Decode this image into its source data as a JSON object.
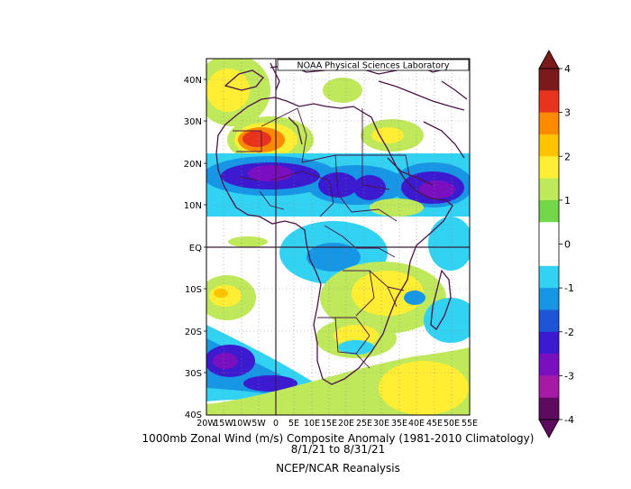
{
  "credit": "NOAA Physical Sciences Laboratory",
  "caption": {
    "line1": "1000mb Zonal Wind (m/s) Composite Anomaly (1981-2010 Climatology)",
    "line2": "8/1/21  to 8/31/21",
    "line3": "NCEP/NCAR Reanalysis"
  },
  "axes": {
    "lat_labels": [
      "40N",
      "30N",
      "20N",
      "10N",
      "EQ",
      "10S",
      "20S",
      "30S",
      "40S"
    ],
    "lon_labels": [
      "20W",
      "15W",
      "10W",
      "5W",
      "0",
      "5E",
      "10E",
      "15E",
      "20E",
      "25E",
      "30E",
      "35E",
      "40E",
      "45E",
      "50E",
      "55E"
    ]
  },
  "colorbar": {
    "tick_labels": [
      "4",
      "3",
      "2",
      "1",
      "0",
      "-1",
      "-2",
      "-3",
      "-4"
    ],
    "colors": [
      "#7b1a1a",
      "#e8341c",
      "#ff8a00",
      "#ffc400",
      "#ffee33",
      "#bfe85a",
      "#72d84a",
      "#ffffff",
      "#ffffff",
      "#32d2f2",
      "#1896e6",
      "#1d55d6",
      "#3c1ad0",
      "#7a0fc0",
      "#a61aa6",
      "#5e0a5e"
    ]
  },
  "chart_data": {
    "type": "heatmap",
    "title": "1000mb Zonal Wind (m/s) Composite Anomaly (1981-2010 Climatology)",
    "period": "8/1/21 to 8/31/21",
    "source": "NCEP/NCAR Reanalysis",
    "lon_range": [
      -20,
      55
    ],
    "lat_range": [
      -40,
      45
    ],
    "value_range": [
      -4,
      4
    ],
    "units": "m/s"
  }
}
